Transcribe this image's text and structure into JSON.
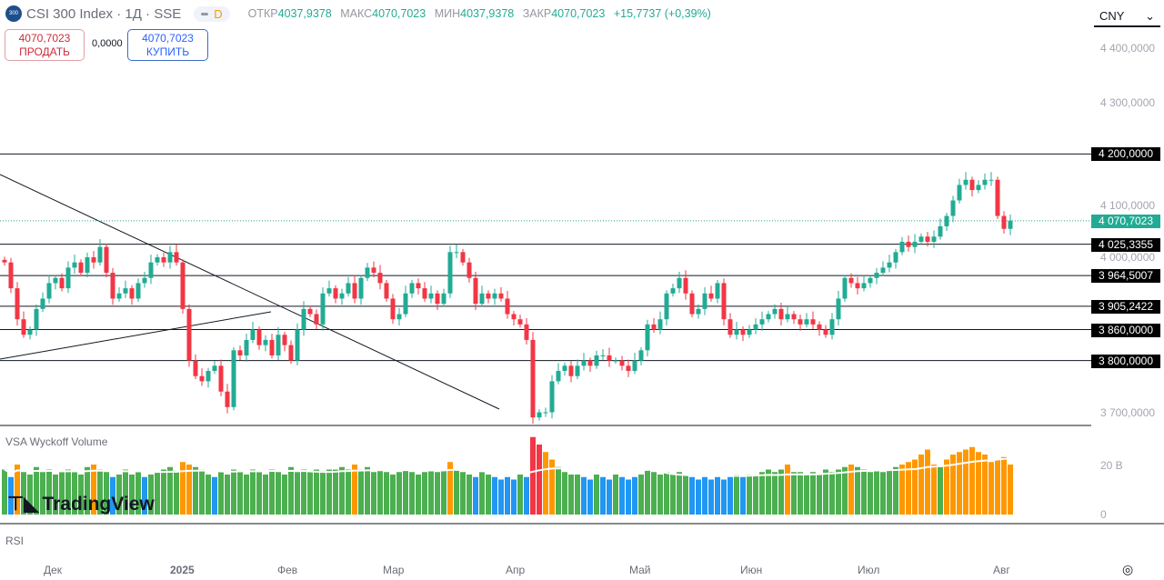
{
  "header": {
    "symbol_logo": "300",
    "title": "CSI 300 Index · 1Д · SSE",
    "interval_badge": "D",
    "ohlc": {
      "open_label": "ОТКР",
      "open": "4037,9378",
      "high_label": "МАКС",
      "high": "4070,7023",
      "low_label": "МИН",
      "low": "4037,9378",
      "close_label": "ЗАКР",
      "close": "4070,7023",
      "change": "+15,7737 (+0,39%)"
    }
  },
  "trade": {
    "sell_price": "4070,7023",
    "sell_label": "ПРОДАТЬ",
    "spread": "0,0000",
    "buy_price": "4070,7023",
    "buy_label": "КУПИТЬ"
  },
  "currency": "CNY",
  "price_axis": [
    "4 400,0000",
    "4 300,0000",
    "4 100,0000",
    "4 000,0000",
    "3 700,0000"
  ],
  "levels": [
    {
      "label": "4 200,0000",
      "value": 4200
    },
    {
      "label": "4 025,3355",
      "value": 4025.3355
    },
    {
      "label": "3 964,5007",
      "value": 3964.5007
    },
    {
      "label": "3 905,2422",
      "value": 3905.2422
    },
    {
      "label": "3 860,0000",
      "value": 3860
    },
    {
      "label": "3 800,0000",
      "value": 3800
    }
  ],
  "current_price": {
    "label": "4 070,7023",
    "value": 4070.7023
  },
  "volume_pane": {
    "title": "VSA Wyckoff Volume",
    "axis": [
      "20 B",
      "0"
    ]
  },
  "rsi_pane": {
    "title": "RSI"
  },
  "time_axis": [
    "Дек",
    "2025",
    "Фев",
    "Мар",
    "Апр",
    "Май",
    "Июн",
    "Июл",
    "Авг"
  ],
  "watermark": "TradingView",
  "colors": {
    "up": "#22ab94",
    "down": "#f23645",
    "vol_green": "#4caf50",
    "vol_blue": "#2196f3",
    "vol_orange": "#ff9800",
    "vol_red": "#f23645"
  },
  "chart_data": {
    "type": "candlestick",
    "start_open": 3995,
    "closes": [
      3990,
      3940,
      3880,
      3850,
      3860,
      3900,
      3920,
      3950,
      3960,
      3940,
      3980,
      3990,
      3970,
      4000,
      3990,
      4020,
      3970,
      3920,
      3930,
      3940,
      3920,
      3950,
      3960,
      3990,
      4000,
      3990,
      4010,
      3990,
      3900,
      3800,
      3770,
      3760,
      3780,
      3790,
      3740,
      3710,
      3820,
      3810,
      3840,
      3860,
      3830,
      3840,
      3810,
      3850,
      3830,
      3800,
      3860,
      3900,
      3890,
      3870,
      3930,
      3940,
      3920,
      3930,
      3950,
      3920,
      3960,
      3980,
      3970,
      3950,
      3920,
      3880,
      3890,
      3930,
      3950,
      3940,
      3920,
      3930,
      3910,
      3930,
      4010,
      4010,
      3990,
      3960,
      3910,
      3930,
      3920,
      3930,
      3920,
      3890,
      3880,
      3870,
      3840,
      3690,
      3700,
      3700,
      3760,
      3780,
      3790,
      3770,
      3790,
      3800,
      3790,
      3810,
      3810,
      3800,
      3800,
      3790,
      3780,
      3800,
      3820,
      3870,
      3860,
      3880,
      3930,
      3940,
      3960,
      3930,
      3890,
      3900,
      3930,
      3920,
      3950,
      3880,
      3850,
      3860,
      3850,
      3860,
      3870,
      3880,
      3890,
      3900,
      3880,
      3890,
      3880,
      3870,
      3880,
      3870,
      3860,
      3850,
      3880,
      3920,
      3960,
      3950,
      3940,
      3950,
      3960,
      3970,
      3980,
      3990,
      4010,
      4030,
      4020,
      4030,
      4040,
      4030,
      4040,
      4060,
      4080,
      4110,
      4140,
      4150,
      4130,
      4140,
      4150,
      4150,
      4080,
      4055,
      4071
    ],
    "volumes_b": [
      18,
      15,
      20,
      17,
      16,
      19,
      17,
      18,
      16,
      17,
      18,
      17,
      16,
      19,
      20,
      18,
      17,
      15,
      16,
      18,
      16,
      17,
      15,
      16,
      17,
      18,
      19,
      17,
      21,
      20,
      19,
      18,
      16,
      15,
      17,
      16,
      18,
      17,
      16,
      18,
      17,
      16,
      18,
      17,
      16,
      19,
      17,
      18,
      17,
      18,
      17,
      18,
      18,
      19,
      18,
      20,
      18,
      19,
      17,
      18,
      17,
      16,
      17,
      18,
      17,
      16,
      17,
      18,
      17,
      18,
      21,
      18,
      17,
      16,
      15,
      17,
      16,
      15,
      14,
      15,
      14,
      16,
      15,
      31,
      28,
      25,
      22,
      19,
      17,
      16,
      16,
      15,
      14,
      16,
      15,
      14,
      16,
      15,
      14,
      15,
      16,
      18,
      17,
      16,
      17,
      16,
      17,
      16,
      15,
      14,
      15,
      14,
      15,
      14,
      15,
      16,
      15,
      16,
      16,
      17,
      18,
      17,
      18,
      20,
      17,
      17,
      16,
      17,
      16,
      18,
      17,
      18,
      19,
      20,
      19,
      18,
      17,
      18,
      17,
      18,
      19,
      20,
      21,
      22,
      24,
      26,
      20,
      19,
      22,
      24,
      25,
      26,
      27,
      25,
      24,
      21,
      22,
      23,
      20
    ]
  }
}
